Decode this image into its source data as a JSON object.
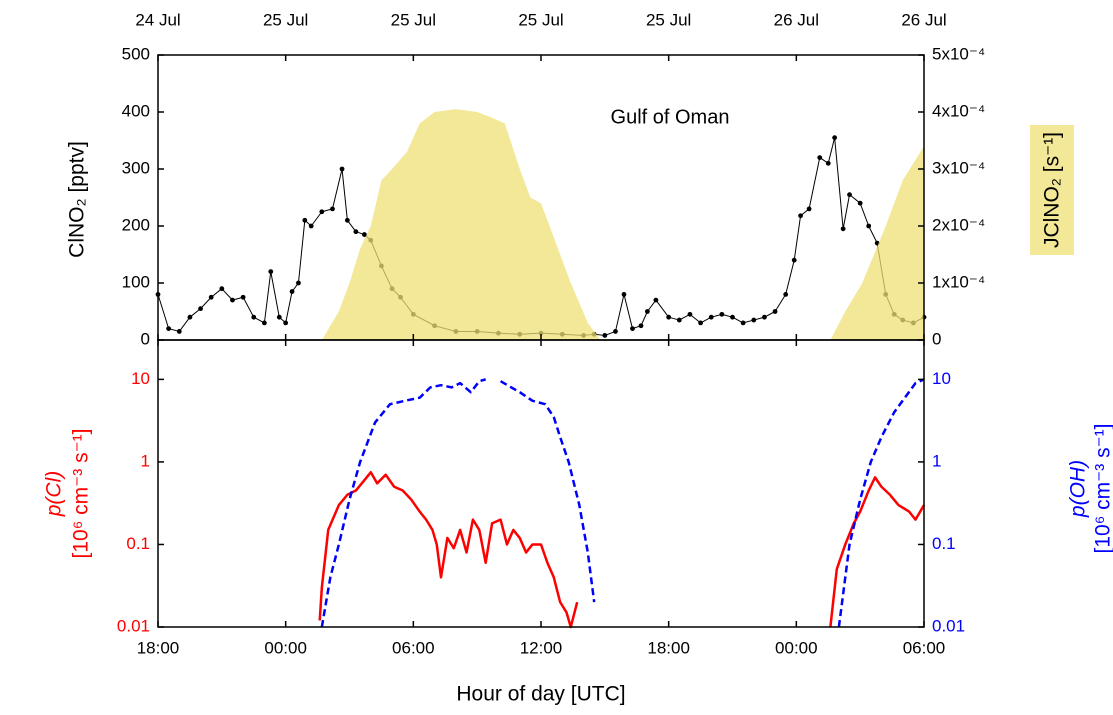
{
  "chart_data": [
    {
      "type": "line",
      "annotation": "Gulf of Oman",
      "ylabel": "ClNO₂ [pptv]",
      "y2label": "JClNO₂ [s⁻¹]",
      "y2label_box": true,
      "xlim": [
        0,
        36
      ],
      "xticks": [
        {
          "value": 0,
          "label": "24 Jul"
        },
        {
          "value": 6,
          "label": "25 Jul"
        },
        {
          "value": 12,
          "label": "25 Jul"
        },
        {
          "value": 18,
          "label": "25 Jul"
        },
        {
          "value": 24,
          "label": "25 Jul"
        },
        {
          "value": 30,
          "label": "26 Jul"
        },
        {
          "value": 36,
          "label": "26 Jul"
        }
      ],
      "ylim": [
        0,
        500
      ],
      "yticks": [
        0,
        100,
        200,
        300,
        400,
        500
      ],
      "y2lim": [
        0,
        0.0005
      ],
      "y2ticks": [
        0,
        {
          "value": 0.0001,
          "label": "1x10⁻⁴"
        },
        {
          "value": 0.0002,
          "label": "2x10⁻⁴"
        },
        {
          "value": 0.0003,
          "label": "3x10⁻⁴"
        },
        {
          "value": 0.0004,
          "label": "4x10⁻⁴"
        },
        {
          "value": 0.0005,
          "label": "5x10⁻⁴"
        }
      ],
      "series": [
        {
          "color": "#000000",
          "markers": true,
          "x": [
            0,
            0.5,
            1,
            1.5,
            2,
            2.5,
            3,
            3.5,
            4,
            4.5,
            5,
            5.3,
            5.7,
            6,
            6.3,
            6.6,
            6.9,
            7.2,
            7.7,
            8.2,
            8.65,
            8.9,
            9.3,
            9.7,
            10,
            10.5,
            11,
            11.4,
            12,
            13,
            14,
            15,
            16,
            17,
            18,
            19,
            20,
            20.5,
            21,
            21.5,
            21.9,
            22.3,
            22.7,
            23,
            23.4,
            24,
            24.5,
            25,
            25.5,
            26,
            26.5,
            27,
            27.5,
            28,
            28.5,
            29,
            29.5,
            29.9,
            30.2,
            30.6,
            31.1,
            31.5,
            31.8,
            32.2,
            32.5,
            33,
            33.4,
            33.8,
            34.2,
            34.6,
            35,
            35.5,
            36
          ],
          "values": [
            80,
            20,
            15,
            40,
            55,
            75,
            90,
            70,
            75,
            40,
            30,
            120,
            40,
            30,
            85,
            100,
            210,
            200,
            225,
            230,
            300,
            210,
            190,
            185,
            175,
            130,
            90,
            75,
            45,
            25,
            15,
            15,
            12,
            10,
            12,
            10,
            8,
            10,
            8,
            15,
            80,
            20,
            25,
            50,
            70,
            40,
            35,
            45,
            30,
            40,
            45,
            40,
            30,
            35,
            40,
            50,
            80,
            140,
            218,
            230,
            320,
            310,
            355,
            195,
            255,
            240,
            200,
            170,
            80,
            45,
            35,
            30,
            40
          ]
        },
        {
          "color": "#efe074",
          "area": true,
          "axis": "y2",
          "x": [
            7.7,
            8.5,
            9,
            9.5,
            10,
            10.5,
            11,
            11.7,
            12.3,
            13,
            14,
            15,
            15.7,
            16.3,
            17,
            17.5,
            18,
            18.7,
            19.4,
            20.2,
            20.8,
            26,
            31.6,
            32.3,
            33.1,
            34.2,
            35,
            36
          ],
          "values": [
            0,
            5e-05,
            0.0001,
            0.00016,
            0.0002,
            0.00028,
            0.0003,
            0.00033,
            0.00038,
            0.0004,
            0.000405,
            0.0004,
            0.00039,
            0.00038,
            0.0003,
            0.00025,
            0.00024,
            0.00017,
            0.0001,
            3e-05,
            0,
            null,
            0,
            5e-05,
            0.0001,
            0.0002,
            0.00028,
            0.00034
          ]
        }
      ]
    },
    {
      "type": "line",
      "log_y": true,
      "axis_colored": true,
      "xlabel": "Hour of day [UTC]",
      "ylabel": [
        "p(Cl)",
        "[10⁶ cm⁻³ s⁻¹]"
      ],
      "y2label": [
        "p(OH)",
        "[10⁶ cm⁻³ s⁻¹]"
      ],
      "xlim": [
        0,
        36
      ],
      "xticks": [
        {
          "value": 0,
          "label": "18:00"
        },
        {
          "value": 6,
          "label": "00:00"
        },
        {
          "value": 12,
          "label": "06:00"
        },
        {
          "value": 18,
          "label": "12:00"
        },
        {
          "value": 24,
          "label": "18:00"
        },
        {
          "value": 30,
          "label": "00:00"
        },
        {
          "value": 36,
          "label": "06:00"
        }
      ],
      "ylim": [
        0.01,
        30
      ],
      "yticks": [
        0.01,
        0.1,
        1,
        10
      ],
      "y2lim": [
        0.01,
        30
      ],
      "y2ticks": [
        0.01,
        0.1,
        1,
        10
      ],
      "series": [
        {
          "color": "#ff0000",
          "x": [
            7.6,
            7.7,
            8.0,
            8.5,
            8.9,
            9.3,
            9.7,
            10,
            10.3,
            10.7,
            11.1,
            11.5,
            11.9,
            12.3,
            12.6,
            12.9,
            13.1,
            13.3,
            13.6,
            13.9,
            14.2,
            14.5,
            14.8,
            15.1,
            15.4,
            15.7,
            16.1,
            16.4,
            16.7,
            17,
            17.3,
            17.6,
            18,
            18.3,
            18.6,
            18.9,
            19.2,
            19.4,
            19.7,
            26,
            31.6,
            31.9,
            32.3,
            32.7,
            33,
            33.4,
            33.7,
            34.0,
            34.4,
            34.8,
            35.3,
            35.6,
            36
          ],
          "values": [
            0.012,
            0.03,
            0.15,
            0.3,
            0.4,
            0.45,
            0.6,
            0.75,
            0.55,
            0.7,
            0.5,
            0.45,
            0.35,
            0.25,
            0.2,
            0.15,
            0.1,
            0.04,
            0.12,
            0.09,
            0.15,
            0.08,
            0.2,
            0.15,
            0.06,
            0.18,
            0.2,
            0.1,
            0.15,
            0.12,
            0.08,
            0.1,
            0.1,
            0.06,
            0.04,
            0.02,
            0.015,
            0.01,
            0.02,
            null,
            0.01,
            0.05,
            0.1,
            0.18,
            0.25,
            0.45,
            0.65,
            0.5,
            0.4,
            0.3,
            0.25,
            0.2,
            0.3
          ]
        },
        {
          "color": "#0000ff",
          "dashed": true,
          "axis": "y2",
          "x": [
            7.7,
            8.1,
            8.5,
            9,
            9.5,
            10.2,
            10.9,
            11.6,
            12.3,
            12.8,
            13.3,
            13.8,
            14.2,
            14.7,
            15.1,
            15.4,
            15.8,
            16.1,
            16.6,
            17,
            17.6,
            18.2,
            18.6,
            18.9,
            19.3,
            19.8,
            20.2,
            20.5,
            26,
            32,
            32.5,
            33,
            33.5,
            34,
            34.6,
            35.1,
            35.6,
            36
          ],
          "values": [
            0.01,
            0.04,
            0.1,
            0.35,
            1,
            3,
            5,
            5.5,
            6,
            8,
            8.5,
            8,
            9,
            7,
            9.5,
            10,
            null,
            9.5,
            8,
            7,
            5.5,
            5,
            3.5,
            2,
            1,
            0.3,
            0.08,
            0.02,
            null,
            0.01,
            0.1,
            0.35,
            1,
            2,
            4,
            6,
            9,
            10
          ]
        }
      ]
    }
  ]
}
